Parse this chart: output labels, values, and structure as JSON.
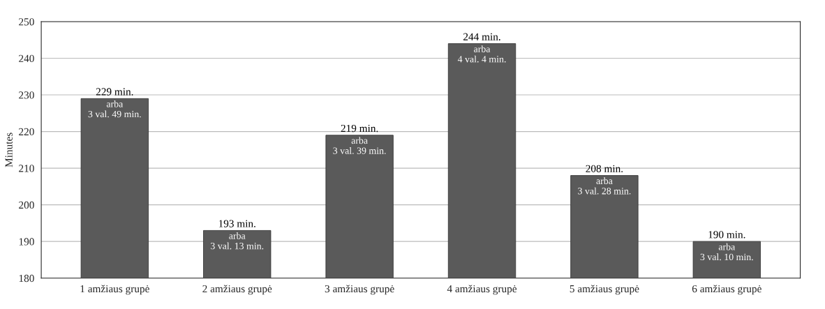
{
  "chart_data": {
    "type": "bar",
    "ylabel": "Minutes",
    "categories": [
      "1 amžiaus grupė",
      "2 amžiaus grupė",
      "3 amžiaus grupė",
      "4 amžiaus grupė",
      "5 amžiaus grupė",
      "6 amžiaus grupė"
    ],
    "values": [
      229,
      193,
      219,
      244,
      208,
      190
    ],
    "value_labels": [
      "229 min.\narba\n3 val. 49 min.",
      "193 min.\narba\n3 val. 13 min.",
      "219 min.\narba\n3 val. 39 min.",
      "244 min.\narba\n4 val. 4 min.",
      "208 min.\narba\n3 val. 28 min.",
      "190 min.\narba\n3 val. 10 min."
    ],
    "color": "#5a5a5a",
    "ylim": [
      180,
      250
    ],
    "yticks": [
      180,
      190,
      200,
      210,
      220,
      230,
      240,
      250
    ],
    "grid": "y"
  }
}
